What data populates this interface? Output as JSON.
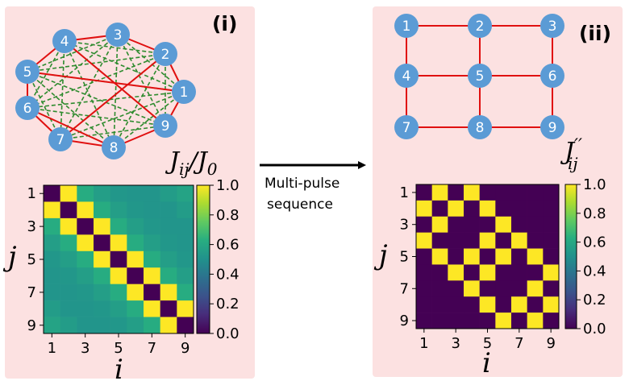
{
  "panel_left": {
    "label": "(i)",
    "color_label_main": "J",
    "color_label_sub": "ij",
    "color_label_den": "/J",
    "color_label_den_sub": "0",
    "nodes": [
      "1",
      "2",
      "3",
      "4",
      "5",
      "6",
      "7",
      "8",
      "9"
    ],
    "axis_x_label": "i",
    "axis_y_label": "j",
    "x_ticks": [
      "1",
      "3",
      "5",
      "7",
      "9"
    ],
    "y_ticks": [
      "1",
      "3",
      "5",
      "7",
      "9"
    ],
    "colorbar_ticks": [
      "1.0",
      "0.8",
      "0.6",
      "0.4",
      "0.2",
      "0.0"
    ]
  },
  "panel_right": {
    "label": "(ii)",
    "color_label_main": "J",
    "color_label_prime": "′′",
    "color_label_sub": "ij",
    "nodes": [
      "1",
      "2",
      "3",
      "4",
      "5",
      "6",
      "7",
      "8",
      "9"
    ],
    "axis_x_label": "i",
    "axis_y_label": "j",
    "x_ticks": [
      "1",
      "3",
      "5",
      "7",
      "9"
    ],
    "y_ticks": [
      "1",
      "3",
      "5",
      "7",
      "9"
    ],
    "colorbar_ticks": [
      "1.0",
      "0.8",
      "0.6",
      "0.4",
      "0.2",
      "0.0"
    ]
  },
  "arrow": {
    "line1": "Multi-pulse",
    "line2": "sequence"
  },
  "colors": {
    "panel_bg": "#fce1e1",
    "node": "#5b9bd5",
    "nn_edge": "#e01010",
    "long_edge": "#2e8b2e",
    "grid_edge": "#e01010"
  },
  "chart_data": [
    {
      "type": "heatmap",
      "title": "",
      "xlabel": "i",
      "ylabel": "j",
      "x": [
        1,
        2,
        3,
        4,
        5,
        6,
        7,
        8,
        9
      ],
      "y": [
        1,
        2,
        3,
        4,
        5,
        6,
        7,
        8,
        9
      ],
      "zlim": [
        0,
        1
      ],
      "values": [
        [
          0.0,
          1.0,
          0.62,
          0.56,
          0.53,
          0.52,
          0.52,
          0.55,
          0.58
        ],
        [
          1.0,
          0.0,
          1.0,
          0.62,
          0.56,
          0.53,
          0.52,
          0.52,
          0.55
        ],
        [
          0.62,
          1.0,
          0.0,
          1.0,
          0.62,
          0.56,
          0.53,
          0.52,
          0.52
        ],
        [
          0.56,
          0.62,
          1.0,
          0.0,
          1.0,
          0.62,
          0.56,
          0.53,
          0.52
        ],
        [
          0.53,
          0.56,
          0.62,
          1.0,
          0.0,
          1.0,
          0.62,
          0.56,
          0.53
        ],
        [
          0.52,
          0.53,
          0.56,
          0.62,
          1.0,
          0.0,
          1.0,
          0.62,
          0.56
        ],
        [
          0.52,
          0.52,
          0.53,
          0.56,
          0.62,
          1.0,
          0.0,
          1.0,
          0.62
        ],
        [
          0.55,
          0.52,
          0.52,
          0.53,
          0.56,
          0.62,
          1.0,
          0.0,
          1.0
        ],
        [
          0.58,
          0.55,
          0.52,
          0.52,
          0.53,
          0.56,
          0.62,
          1.0,
          0.0
        ]
      ]
    },
    {
      "type": "heatmap",
      "title": "",
      "xlabel": "i",
      "ylabel": "j",
      "x": [
        1,
        2,
        3,
        4,
        5,
        6,
        7,
        8,
        9
      ],
      "y": [
        1,
        2,
        3,
        4,
        5,
        6,
        7,
        8,
        9
      ],
      "zlim": [
        0,
        1
      ],
      "values": [
        [
          0,
          1,
          0,
          1,
          0,
          0,
          0,
          0,
          0
        ],
        [
          1,
          0,
          1,
          0,
          1,
          0,
          0,
          0,
          0
        ],
        [
          0,
          1,
          0,
          0,
          0,
          1,
          0,
          0,
          0
        ],
        [
          1,
          0,
          0,
          0,
          1,
          0,
          1,
          0,
          0
        ],
        [
          0,
          1,
          0,
          1,
          0,
          1,
          0,
          1,
          0
        ],
        [
          0,
          0,
          1,
          0,
          1,
          0,
          0,
          0,
          1
        ],
        [
          0,
          0,
          0,
          1,
          0,
          0,
          0,
          1,
          0
        ],
        [
          0,
          0,
          0,
          0,
          1,
          0,
          1,
          0,
          1
        ],
        [
          0,
          0,
          0,
          0,
          0,
          1,
          0,
          1,
          0
        ]
      ]
    }
  ]
}
